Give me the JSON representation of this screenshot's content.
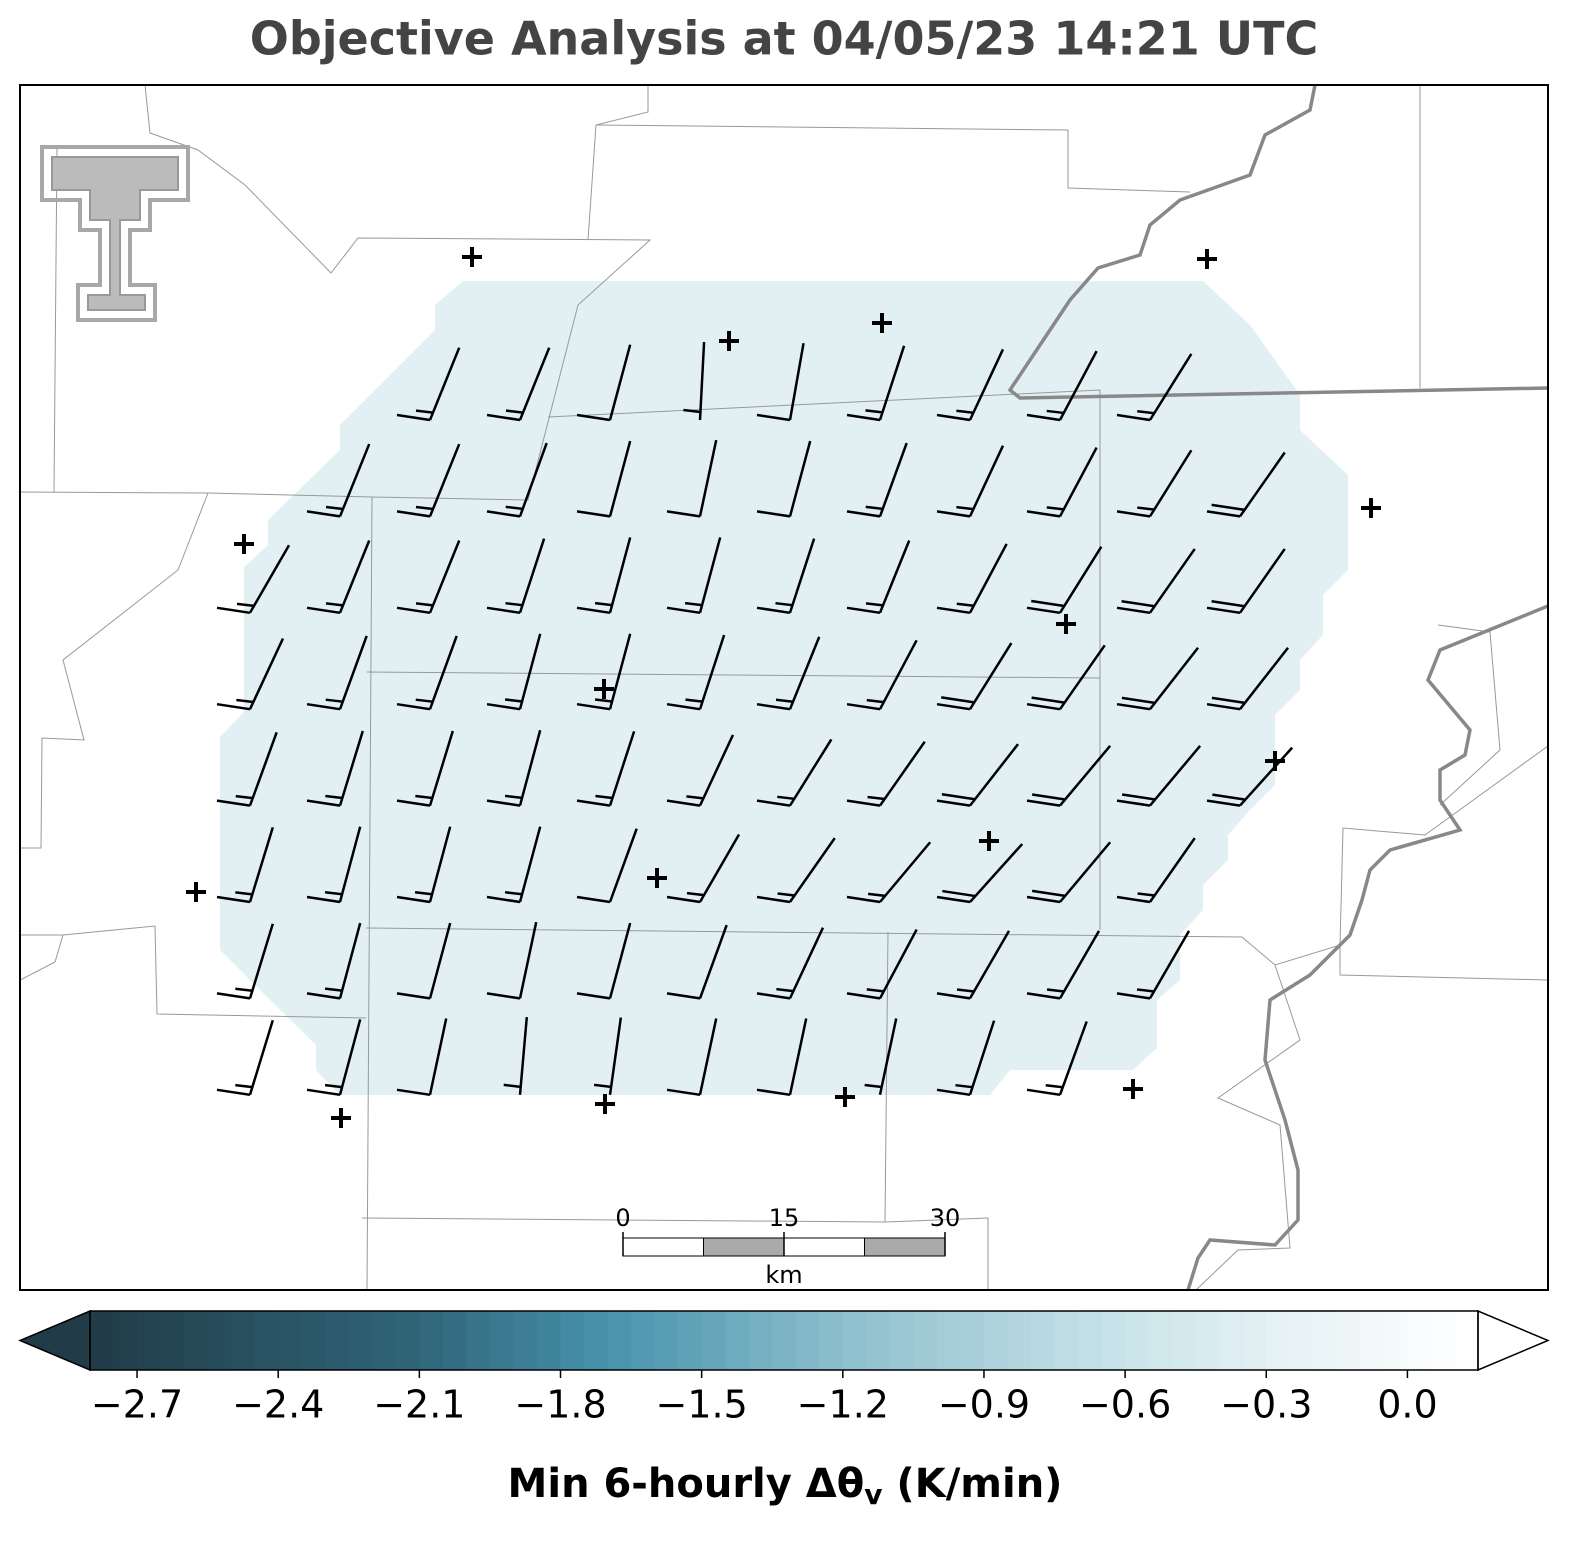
{
  "title": "Objective Analysis at 04/05/23 14:21 UTC",
  "colorbar": {
    "label": {
      "text": "Min 6-hourly Δθ",
      "sub": "v",
      "tail": " (K/min)"
    },
    "clim": [
      -2.8,
      0.15
    ],
    "ticks": [
      {
        "value": -2.7,
        "label": "−2.7"
      },
      {
        "value": -2.4,
        "label": "−2.4"
      },
      {
        "value": -2.1,
        "label": "−2.1"
      },
      {
        "value": -1.8,
        "label": "−1.8"
      },
      {
        "value": -1.5,
        "label": "−1.5"
      },
      {
        "value": -1.2,
        "label": "−1.2"
      },
      {
        "value": -0.9,
        "label": "−0.9"
      },
      {
        "value": -0.6,
        "label": "−0.6"
      },
      {
        "value": -0.3,
        "label": "−0.3"
      },
      {
        "value": 0,
        "label": "0.0"
      }
    ],
    "stops": [
      {
        "value": -2.8,
        "color": "#213c47"
      },
      {
        "value": -2.1,
        "color": "#2f6579"
      },
      {
        "value": -1.7,
        "color": "#4792ac"
      },
      {
        "value": -1.2,
        "color": "#8dbfcd"
      },
      {
        "value": -0.6,
        "color": "#c9e4ea"
      },
      {
        "value": -0.3,
        "color": "#e3f0f3"
      },
      {
        "value": 0,
        "color": "#f7fbfc"
      },
      {
        "value": 0.15,
        "color": "#ffffff"
      }
    ],
    "extend": "both"
  },
  "scale_bar": {
    "ticks": [
      0,
      15,
      30
    ],
    "unit": "km"
  },
  "wind_barbs": {
    "speed": [
      [
        null,
        null,
        15,
        15,
        10,
        5,
        10,
        15,
        15,
        15,
        15,
        null
      ],
      [
        null,
        15,
        15,
        15,
        10,
        10,
        10,
        15,
        15,
        15,
        15,
        20
      ],
      [
        15,
        15,
        15,
        15,
        15,
        15,
        15,
        15,
        15,
        20,
        20,
        20
      ],
      [
        15,
        15,
        15,
        15,
        15,
        15,
        15,
        15,
        20,
        20,
        20,
        20
      ],
      [
        15,
        15,
        15,
        15,
        15,
        15,
        15,
        15,
        20,
        20,
        20,
        20
      ],
      [
        15,
        15,
        15,
        15,
        10,
        15,
        15,
        15,
        20,
        20,
        15,
        null
      ],
      [
        15,
        15,
        10,
        10,
        10,
        10,
        15,
        15,
        15,
        15,
        15,
        null
      ],
      [
        15,
        15,
        10,
        5,
        5,
        10,
        10,
        5,
        15,
        15,
        null,
        null
      ]
    ],
    "direction": [
      [
        null,
        null,
        22,
        22,
        15,
        3,
        10,
        18,
        25,
        28,
        32,
        null
      ],
      [
        null,
        22,
        22,
        20,
        15,
        12,
        15,
        20,
        25,
        28,
        32,
        35
      ],
      [
        30,
        22,
        22,
        18,
        15,
        15,
        18,
        22,
        28,
        32,
        35,
        35
      ],
      [
        25,
        20,
        20,
        15,
        15,
        18,
        22,
        28,
        32,
        35,
        38,
        38
      ],
      [
        20,
        17,
        17,
        15,
        18,
        25,
        32,
        35,
        38,
        40,
        40,
        42
      ],
      [
        17,
        15,
        15,
        15,
        20,
        30,
        35,
        40,
        42,
        40,
        35,
        null
      ],
      [
        17,
        15,
        15,
        12,
        15,
        20,
        25,
        28,
        30,
        30,
        30,
        null
      ],
      [
        17,
        15,
        12,
        5,
        8,
        12,
        12,
        12,
        18,
        20,
        null,
        null
      ]
    ]
  }
}
